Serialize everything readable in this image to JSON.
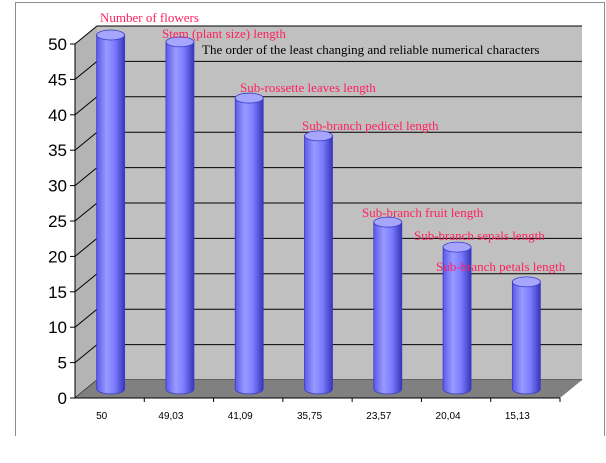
{
  "chart_data": {
    "type": "bar",
    "style": "3d-cylinder",
    "title": "The order of the least changing and reliable numerical characters",
    "categories": [
      "50",
      "49,03",
      "41,09",
      "35,75",
      "23,57",
      "20,04",
      "15,13"
    ],
    "series": [
      {
        "values": [
          50,
          49.03,
          41.09,
          35.75,
          23.57,
          20.04,
          15.13
        ],
        "bar_labels": [
          "Number of flowers",
          "Stem (plant size) length",
          "Sub-rossette leaves length",
          "Sub-branch pedicel length",
          "Sub-branch fruit length",
          "Sub-branch sepals length",
          "Sub-branch petals length"
        ]
      }
    ],
    "yticks": [
      "0",
      "5",
      "10",
      "15",
      "20",
      "25",
      "30",
      "35",
      "40",
      "45",
      "50"
    ],
    "ylim": [
      0,
      50
    ],
    "grid": true,
    "legend": "none",
    "colors": {
      "bar": "#8080ff",
      "bar_dark": "#3a3ac8",
      "wall": "#c0c0c0",
      "floor": "#808080",
      "bar_label": "#ff2060"
    }
  }
}
